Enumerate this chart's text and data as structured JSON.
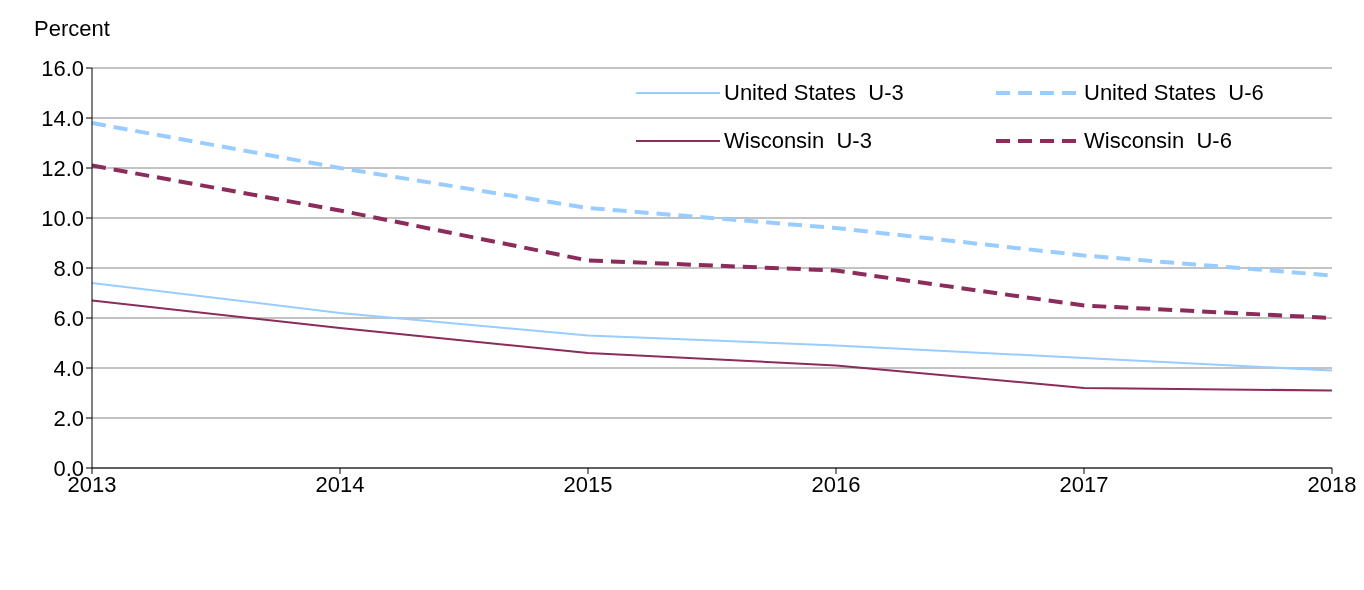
{
  "chart_data": {
    "type": "line",
    "ylabel": "Percent",
    "x": [
      2013,
      2014,
      2015,
      2016,
      2017,
      2018
    ],
    "xlim": [
      2013,
      2018
    ],
    "xticks": [
      2013,
      2014,
      2015,
      2016,
      2017,
      2018
    ],
    "ylim": [
      0,
      16
    ],
    "yticks": [
      {
        "value": 0,
        "label": "0.0"
      },
      {
        "value": 2,
        "label": "2.0"
      },
      {
        "value": 4,
        "label": "4.0"
      },
      {
        "value": 6,
        "label": "6.0"
      },
      {
        "value": 8,
        "label": "8.0"
      },
      {
        "value": 10,
        "label": "10.0"
      },
      {
        "value": 12,
        "label": "12.0"
      },
      {
        "value": 14,
        "label": "14.0"
      },
      {
        "value": 16,
        "label": "16.0"
      }
    ],
    "grid": "y",
    "legend": "top right",
    "series": [
      {
        "name": "United States  U-3",
        "color": "#99ccff",
        "line_style": "solid",
        "values": [
          7.4,
          6.2,
          5.3,
          4.9,
          4.4,
          3.9
        ]
      },
      {
        "name": "United States  U-6",
        "color": "#99ccff",
        "line_style": "dashed",
        "values": [
          13.8,
          12.0,
          10.4,
          9.6,
          8.5,
          7.7
        ]
      },
      {
        "name": "Wisconsin  U-3",
        "color": "#8b2c5a",
        "line_style": "solid",
        "values": [
          6.7,
          5.6,
          4.6,
          4.1,
          3.2,
          3.1
        ]
      },
      {
        "name": "Wisconsin  U-6",
        "color": "#8b2c5a",
        "line_style": "dashed",
        "values": [
          12.1,
          10.3,
          8.3,
          7.9,
          6.5,
          6.0
        ]
      }
    ]
  }
}
